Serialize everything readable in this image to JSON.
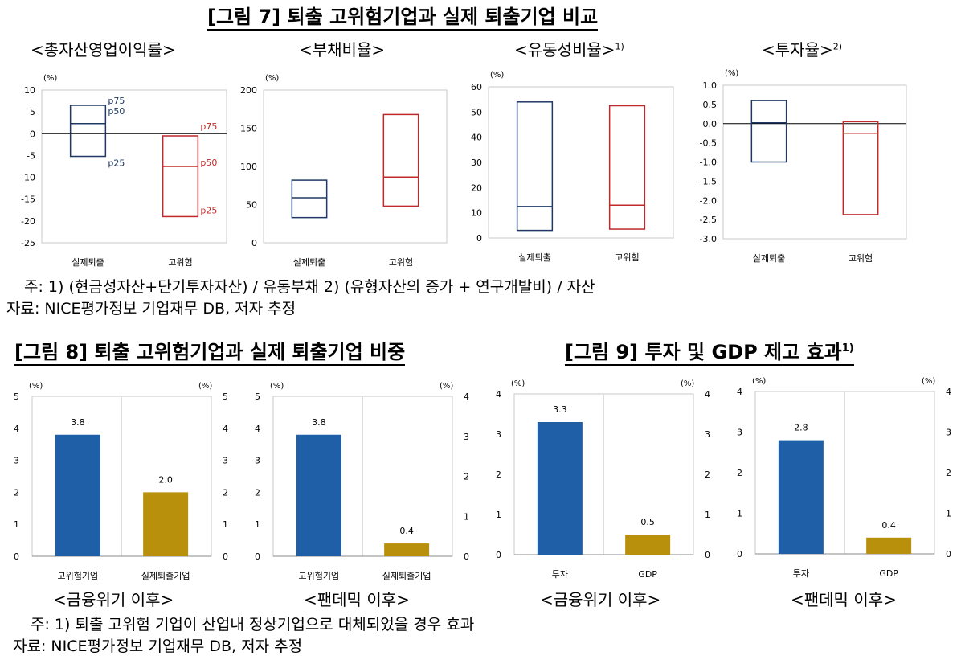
{
  "fig7": {
    "title": "[그림 7] 퇴출 고위험기업과 실제 퇴출기업 비교",
    "note1": "주: 1) (현금성자산+단기투자자산) / 유동부채   2) (유형자산의 증가 + 연구개발비) / 자산",
    "note2": "자료: NICE평가정보 기업재무 DB, 저자 추정"
  },
  "fig8": {
    "title": "[그림 8] 퇴출 고위험기업과 실제 퇴출기업 비중"
  },
  "fig9": {
    "title": "[그림 9] 투자 및 GDP 제고 효과",
    "title_sup": "1)"
  },
  "bottom": {
    "note1": "주: 1) 퇴출 고위험 기업이 산업내 정상기업으로 대체되었을 경우 효과",
    "note2": "자료: NICE평가정보 기업재무 DB, 저자 추정"
  },
  "colors": {
    "navy": "#1f3864",
    "red": "#c0282a",
    "blue": "#1f5fa8",
    "gold": "#b8900c"
  },
  "chart_data": [
    {
      "id": "roa",
      "type": "box",
      "title": "<총자산영업이익률>",
      "unit": "(%)",
      "categories": [
        "실제퇴출",
        "고위험"
      ],
      "ylim": [
        -25,
        10
      ],
      "yticks": [
        10,
        5,
        0,
        -5,
        -10,
        -15,
        -20,
        -25
      ],
      "zero_line": true,
      "series": [
        {
          "name": "실제퇴출",
          "p25": -5.2,
          "p50": 2.3,
          "p75": 6.5,
          "color": "navy"
        },
        {
          "name": "고위험",
          "p25": -19.0,
          "p50": -7.5,
          "p75": -0.5,
          "color": "red"
        }
      ],
      "labels": [
        "p75",
        "p50",
        "p25"
      ]
    },
    {
      "id": "debt",
      "type": "box",
      "title": "<부채비율>",
      "unit": "(%)",
      "categories": [
        "실제퇴출",
        "고위험"
      ],
      "ylim": [
        0,
        200
      ],
      "yticks": [
        200,
        150,
        100,
        50,
        0
      ],
      "series": [
        {
          "name": "실제퇴출",
          "p25": 33,
          "p50": 59,
          "p75": 82,
          "color": "navy"
        },
        {
          "name": "고위험",
          "p25": 48,
          "p50": 86,
          "p75": 168,
          "color": "red"
        }
      ]
    },
    {
      "id": "liq",
      "type": "box",
      "title": "<유동성비율>",
      "title_sup": "1)",
      "unit": "(%)",
      "categories": [
        "실제퇴출",
        "고위험"
      ],
      "ylim": [
        0,
        60
      ],
      "yticks": [
        60,
        50,
        40,
        30,
        20,
        10,
        0
      ],
      "series": [
        {
          "name": "실제퇴출",
          "p25": 3,
          "p50": 12.5,
          "p75": 54,
          "color": "navy"
        },
        {
          "name": "고위험",
          "p25": 3.5,
          "p50": 13,
          "p75": 52.5,
          "color": "red"
        }
      ]
    },
    {
      "id": "inv",
      "type": "box",
      "title": "<투자율>",
      "title_sup": "2)",
      "unit": "(%)",
      "categories": [
        "실제퇴출",
        "고위험"
      ],
      "ylim": [
        -3.0,
        1.0
      ],
      "yticks": [
        "1.0",
        "0.5",
        "0.0",
        "-0.5",
        "-1.0",
        "-1.5",
        "-2.0",
        "-2.5",
        "-3.0"
      ],
      "zero_line": true,
      "series": [
        {
          "name": "실제퇴출",
          "p25": -1.0,
          "p50": 0.02,
          "p75": 0.6,
          "color": "navy"
        },
        {
          "name": "고위험",
          "p25": -2.37,
          "p50": -0.25,
          "p75": 0.05,
          "color": "red"
        }
      ]
    },
    {
      "id": "share_fin",
      "type": "bar",
      "title": "<금융위기 이후>",
      "unit_left": "(%)",
      "unit_right": "(%)",
      "categories": [
        "고위험기업",
        "실제퇴출기업"
      ],
      "values": [
        3.8,
        2.0
      ],
      "value_labels": [
        "3.8",
        "2.0"
      ],
      "colors": [
        "blue",
        "gold"
      ],
      "ylim": [
        0,
        5
      ],
      "yticks": [
        "5",
        "4",
        "3",
        "2",
        "1",
        "0"
      ],
      "y2ticks": [
        "5",
        "4",
        "3",
        "2",
        "1",
        "0"
      ]
    },
    {
      "id": "share_pan",
      "type": "bar",
      "title": "<팬데믹 이후>",
      "unit_left": "(%)",
      "unit_right": "(%)",
      "categories": [
        "고위험기업",
        "실제퇴출기업"
      ],
      "values": [
        3.8,
        0.4
      ],
      "value_labels": [
        "3.8",
        "0.4"
      ],
      "colors": [
        "blue",
        "gold"
      ],
      "ylim": [
        0,
        5
      ],
      "yticks": [
        "5",
        "4",
        "3",
        "2",
        "1",
        "0"
      ],
      "y2ticks": [
        "4",
        "3",
        "2",
        "1",
        "0"
      ]
    },
    {
      "id": "effect_fin",
      "type": "bar",
      "title": "<금융위기 이후>",
      "unit_left": "(%)",
      "unit_right": "(%)",
      "categories": [
        "투자",
        "GDP"
      ],
      "values": [
        3.3,
        0.5
      ],
      "value_labels": [
        "3.3",
        "0.5"
      ],
      "colors": [
        "blue",
        "gold"
      ],
      "ylim": [
        0,
        4
      ],
      "yticks": [
        "4",
        "3",
        "2",
        "1",
        "0"
      ],
      "y2ticks": [
        "4",
        "3",
        "2",
        "1",
        "0"
      ]
    },
    {
      "id": "effect_pan",
      "type": "bar",
      "title": "<팬데믹 이후>",
      "unit_left": "(%)",
      "unit_right": "(%)",
      "categories": [
        "투자",
        "GDP"
      ],
      "values": [
        2.8,
        0.4
      ],
      "value_labels": [
        "2.8",
        "0.4"
      ],
      "colors": [
        "blue",
        "gold"
      ],
      "ylim": [
        0,
        4
      ],
      "yticks": [
        "4",
        "3",
        "2",
        "1",
        "0"
      ],
      "y2ticks": [
        "4",
        "3",
        "2",
        "1",
        "0"
      ]
    }
  ]
}
